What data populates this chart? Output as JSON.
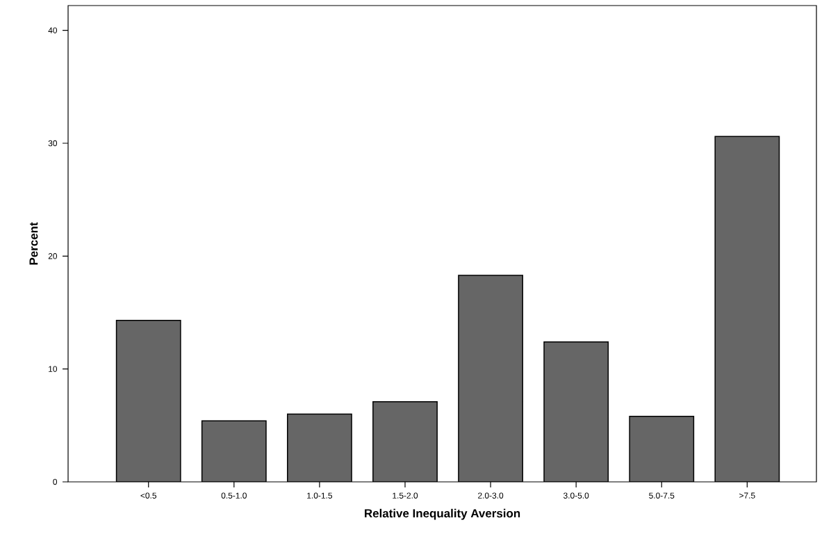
{
  "chart_data": {
    "type": "bar",
    "xlabel": "Relative Inequality Aversion",
    "ylabel": "Percent",
    "categories": [
      "<0.5",
      "0.5-1.0",
      "1.0-1.5",
      "1.5-2.0",
      "2.0-3.0",
      "3.0-5.0",
      "5.0-7.5",
      ">7.5"
    ],
    "values": [
      14.3,
      5.4,
      6.0,
      7.1,
      18.3,
      12.4,
      5.8,
      30.6
    ],
    "color": "#666666",
    "ylim": [
      0,
      42.2
    ],
    "yticks": [
      0,
      10,
      20,
      30,
      40
    ],
    "grid": false
  }
}
